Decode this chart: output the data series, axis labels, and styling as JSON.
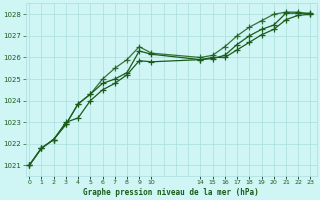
{
  "title": "Graphe pression niveau de la mer (hPa)",
  "bg_color": "#cff5f5",
  "grid_color": "#aadddd",
  "line_color": "#1a5c1a",
  "ylim": [
    1020.5,
    1028.5
  ],
  "yticks": [
    1021,
    1022,
    1023,
    1024,
    1025,
    1026,
    1027,
    1028
  ],
  "xtick_positions": [
    0,
    1,
    2,
    3,
    4,
    5,
    6,
    7,
    8,
    9,
    10,
    14,
    15,
    16,
    17,
    18,
    19,
    20,
    21,
    22,
    23
  ],
  "xtick_labels": [
    "0",
    "1",
    "2",
    "3",
    "4",
    "5",
    "6",
    "7",
    "8",
    "9",
    "10",
    "14",
    "15",
    "16",
    "17",
    "18",
    "19",
    "20",
    "21",
    "22",
    "23"
  ],
  "xlim": [
    -0.3,
    23.5
  ],
  "line1_x": [
    0,
    1,
    2,
    3,
    4,
    5,
    6,
    7,
    8,
    9,
    10,
    14,
    15,
    16,
    17,
    18,
    19,
    20,
    21,
    22,
    23
  ],
  "line1_y": [
    1021.0,
    1021.8,
    1022.2,
    1022.9,
    1023.85,
    1024.3,
    1024.8,
    1025.0,
    1025.3,
    1026.3,
    1026.15,
    1025.9,
    1025.95,
    1026.1,
    1026.6,
    1027.0,
    1027.3,
    1027.5,
    1028.05,
    1028.05,
    1028.05
  ],
  "line2_x": [
    0,
    1,
    2,
    3,
    4,
    5,
    6,
    7,
    8,
    9,
    10,
    14,
    15,
    16,
    17,
    18,
    19,
    20,
    21,
    22,
    23
  ],
  "line2_y": [
    1021.0,
    1021.8,
    1022.2,
    1023.0,
    1023.2,
    1024.0,
    1024.5,
    1024.8,
    1025.2,
    1025.85,
    1025.8,
    1025.9,
    1026.0,
    1026.0,
    1026.35,
    1026.7,
    1027.05,
    1027.3,
    1027.75,
    1027.95,
    1028.0
  ],
  "line3_x": [
    0,
    1,
    2,
    3,
    4,
    5,
    6,
    7,
    8,
    9,
    10,
    14,
    15,
    16,
    17,
    18,
    19,
    20,
    21,
    22,
    23
  ],
  "line3_y": [
    1021.0,
    1021.8,
    1022.2,
    1022.9,
    1023.85,
    1024.3,
    1025.0,
    1025.5,
    1025.9,
    1026.5,
    1026.2,
    1026.0,
    1026.1,
    1026.5,
    1027.0,
    1027.4,
    1027.7,
    1028.0,
    1028.1,
    1028.1,
    1028.0
  ]
}
